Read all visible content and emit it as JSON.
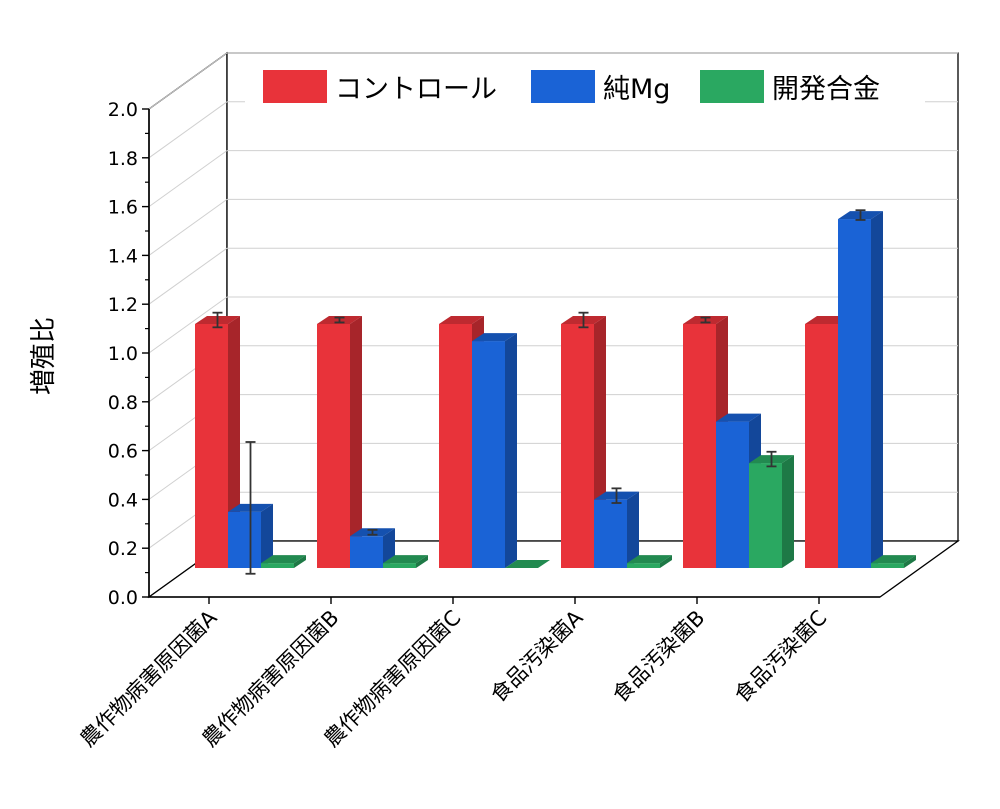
{
  "chart_data": {
    "type": "bar",
    "style": "3d-clustered",
    "ylabel": "増殖比",
    "xlabel": "",
    "ylim": [
      0,
      2.0
    ],
    "ytick_step": 0.2,
    "yticks": [
      "0.0",
      "0.2",
      "0.4",
      "0.6",
      "0.8",
      "1.0",
      "1.2",
      "1.4",
      "1.6",
      "1.8",
      "2.0"
    ],
    "categories": [
      "農作物病害原因菌A",
      "農作物病害原因菌B",
      "農作物病害原因菌C",
      "食品汚染菌A",
      "食品汚染菌B",
      "食品汚染菌C"
    ],
    "legend_position": "top",
    "grid": true,
    "series": [
      {
        "name": "コントロール",
        "color": "#e8333a",
        "values": [
          1.0,
          1.0,
          1.0,
          1.0,
          1.0,
          1.0
        ],
        "errors": [
          0.03,
          0.01,
          0.0,
          0.03,
          0.01,
          0.0
        ]
      },
      {
        "name": "純Mg",
        "color": "#1a63d6",
        "values": [
          0.23,
          0.13,
          0.93,
          0.28,
          0.6,
          1.43
        ],
        "errors": [
          0.27,
          0.01,
          0.0,
          0.03,
          0.0,
          0.02
        ]
      },
      {
        "name": "開発合金",
        "color": "#2aa861",
        "values": [
          0.02,
          0.02,
          0.0,
          0.02,
          0.43,
          0.02
        ],
        "errors": [
          0.0,
          0.0,
          0.0,
          0.0,
          0.03,
          0.0
        ]
      }
    ]
  }
}
